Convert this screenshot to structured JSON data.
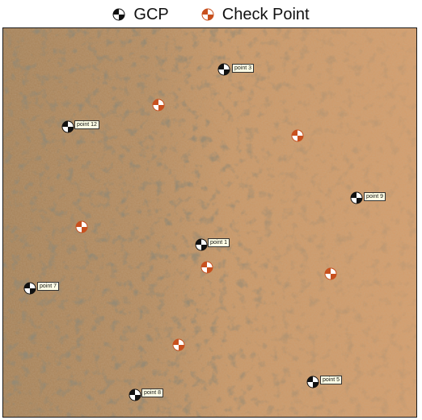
{
  "legend": {
    "gcp_label": "GCP",
    "checkpoint_label": "Check Point",
    "gcp_icon": "gcp-target-icon",
    "checkpoint_icon": "checkpoint-target-icon"
  },
  "colors": {
    "gcp_dark": "#111111",
    "gcp_light": "#ffffff",
    "checkpoint_dark": "#c8501e",
    "checkpoint_light": "#ffffff",
    "label_bg": "#ffffe6",
    "terrain_left": "#a68157",
    "terrain_right": "#d29c6c"
  },
  "gcps": [
    {
      "label": "point 3"
    },
    {
      "label": "point 12"
    },
    {
      "label": "point 9"
    },
    {
      "label": "point 1"
    },
    {
      "label": "point 7"
    },
    {
      "label": "point 5"
    },
    {
      "label": "point 8"
    }
  ],
  "check_point_count": 6
}
